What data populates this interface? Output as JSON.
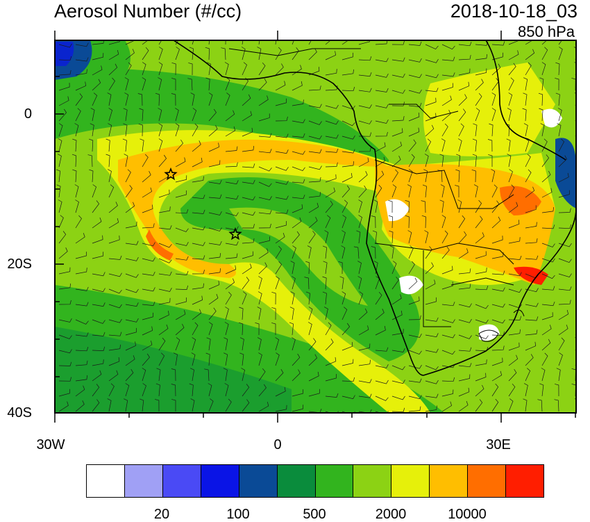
{
  "header": {
    "title": "Aerosol Number (#/cc)",
    "timestamp": "2018-10-18_03",
    "level": "850 hPa"
  },
  "map": {
    "y_tick_labels": [
      "0",
      "20S",
      "40S"
    ],
    "x_tick_labels": [
      "30W",
      "0",
      "30E"
    ],
    "markers": [
      "star",
      "star"
    ]
  },
  "colorbar": {
    "colors": [
      "#ffffff",
      "#a0a0f5",
      "#4a4af5",
      "#0a14e6",
      "#0a4a96",
      "#0a8c3c",
      "#32b41e",
      "#8cd214",
      "#e6f00a",
      "#ffbe00",
      "#ff6e00",
      "#ff1e00"
    ],
    "labels": [
      "20",
      "100",
      "500",
      "2000",
      "10000"
    ]
  },
  "colors": {
    "land_outline": "#000000",
    "wind_barb": "#1a1a1a"
  }
}
